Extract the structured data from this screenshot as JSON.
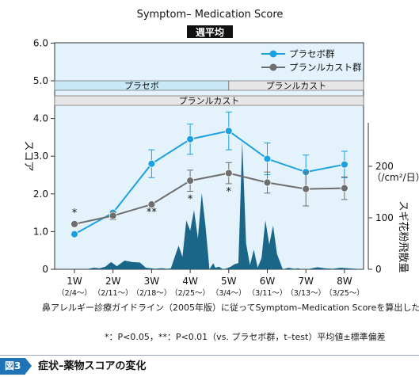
{
  "figure": {
    "number": "図3",
    "caption": "症状–薬物スコアの変化",
    "note1": "鼻アレルギー診療ガイドライン（2005年版）に従ってSymptom–Medication Scoreを算出した。",
    "note2": "*：P<0.05，**：P<0.01（vs. プラセボ群，t–test）平均値±標準偏差"
  },
  "chart_data": {
    "type": "line",
    "title": "Symptom– Medication Score",
    "subtitle": "週平均",
    "ylabel": "スコア",
    "y2label": "スギ花粉飛散量",
    "y2unit": "（/cm²/日）",
    "ylim": [
      0,
      6
    ],
    "yticks": [
      "0",
      "1.0",
      "2.0",
      "3.0",
      "4.0",
      "5.0",
      "6.0"
    ],
    "y2lim": [
      0,
      300
    ],
    "y2ticks": [
      "0",
      "100",
      "200"
    ],
    "categories": [
      "1W",
      "2W",
      "3W",
      "4W",
      "5W",
      "6W",
      "7W",
      "8W"
    ],
    "category_dates": [
      "（2/4～）",
      "（2/11～）",
      "（2/18～）",
      "（2/25～）",
      "（3/4～）",
      "（3/11～）",
      "（3/13～）",
      "（3/25～）"
    ],
    "series": [
      {
        "name": "プラセボ群",
        "color": "#1ba0e2",
        "marker": "circle",
        "values": [
          0.93,
          1.5,
          2.8,
          3.45,
          3.67,
          2.93,
          2.58,
          2.78
        ],
        "errors": [
          0,
          0.07,
          0.37,
          0.4,
          0.5,
          0.42,
          0.45,
          0.35
        ]
      },
      {
        "name": "プランルカスト群",
        "color": "#6e6e6e",
        "marker": "circle",
        "values": [
          1.2,
          1.42,
          1.72,
          2.35,
          2.55,
          2.3,
          2.13,
          2.15
        ],
        "errors": [
          0,
          0.1,
          0,
          0.28,
          0.28,
          0.28,
          0.45,
          0.3
        ]
      }
    ],
    "significance": [
      "*",
      "",
      "**",
      "*",
      "*",
      "",
      "",
      ""
    ],
    "phases": [
      {
        "label": "プラセボ",
        "from": 0,
        "to": 4.5,
        "level": 5.0,
        "color": "#c8e8f7"
      },
      {
        "label": "プランルカスト",
        "from": 4.5,
        "to": 8,
        "level": 5.0,
        "color": "#e6e6e6"
      },
      {
        "label": "プランルカスト",
        "from": 0,
        "to": 8,
        "level": 4.6,
        "color": "#e6e6e6"
      }
    ],
    "pollen": {
      "name": "スギ花粉飛散量",
      "color": "#1a6688",
      "x": [
        0.3,
        0.5,
        0.65,
        0.8,
        0.95,
        1.1,
        1.3,
        1.5,
        1.7,
        1.85,
        2.0,
        2.1,
        2.2,
        2.3,
        2.4,
        2.5,
        2.6,
        2.7,
        2.8,
        2.9,
        3.0,
        3.1,
        3.2,
        3.3,
        3.4,
        3.5,
        3.6,
        3.65,
        3.75,
        3.85,
        3.95,
        4.05,
        4.15,
        4.25,
        4.35,
        4.45,
        4.55,
        4.65,
        4.75,
        4.85,
        4.95,
        5.05,
        5.15,
        5.25,
        5.4,
        5.55,
        5.7,
        5.8,
        5.9,
        6.1,
        6.3,
        6.5,
        6.7,
        6.9,
        7.1,
        7.3,
        7.5,
        7.7
      ],
      "values": [
        0,
        3,
        2,
        5,
        14,
        6,
        17,
        14,
        13,
        3,
        2,
        1,
        2,
        2,
        1,
        2,
        24,
        46,
        24,
        95,
        75,
        115,
        60,
        148,
        82,
        0,
        12,
        3,
        5,
        0,
        2,
        5,
        10,
        12,
        248,
        50,
        8,
        38,
        3,
        22,
        95,
        48,
        85,
        30,
        0,
        3,
        1,
        2,
        0,
        1,
        4,
        2,
        1,
        3,
        2,
        1,
        0,
        0
      ]
    },
    "legend_position": "top-right"
  }
}
